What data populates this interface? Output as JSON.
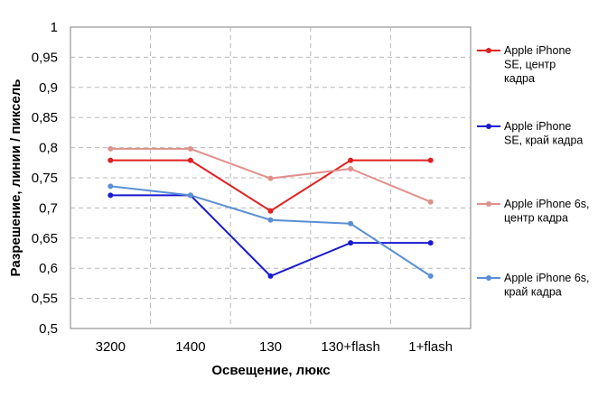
{
  "chart_data": {
    "type": "line",
    "title": "",
    "xlabel": "Освещение,  люкс",
    "ylabel": "Разрешение,  линии  / пиксель",
    "categories": [
      "3200",
      "1400",
      "130",
      "130+flash",
      "1+flash"
    ],
    "ylim": [
      0.5,
      1
    ],
    "yticks": [
      "0,5",
      "0,55",
      "0,6",
      "0,65",
      "0,7",
      "0,75",
      "0,8",
      "0,85",
      "0,9",
      "0,95",
      "1"
    ],
    "grid": true,
    "legend_position": "right",
    "series": [
      {
        "name": "Apple iPhone SE, центр кадра",
        "legend_lines": [
          "Apple iPhone",
          "SE, центр",
          "кадра"
        ],
        "color": "#e02020",
        "values": [
          0.779,
          0.779,
          0.695,
          0.779,
          0.779
        ]
      },
      {
        "name": "Apple iPhone SE, край кадра",
        "legend_lines": [
          "Apple iPhone",
          "SE, край кадра"
        ],
        "color": "#1a1ad0",
        "values": [
          0.721,
          0.721,
          0.587,
          0.642,
          0.642
        ]
      },
      {
        "name": "Apple iPhone 6s, центр кадра",
        "legend_lines": [
          "Apple iPhone 6s,",
          "центр кадра"
        ],
        "color": "#e0908a",
        "values": [
          0.798,
          0.798,
          0.749,
          0.765,
          0.71
        ]
      },
      {
        "name": "Apple iPhone 6s, край кадра",
        "legend_lines": [
          "Apple iPhone 6s,",
          "край кадра"
        ],
        "color": "#5a8fd6",
        "values": [
          0.736,
          0.721,
          0.68,
          0.674,
          0.587
        ]
      }
    ]
  }
}
